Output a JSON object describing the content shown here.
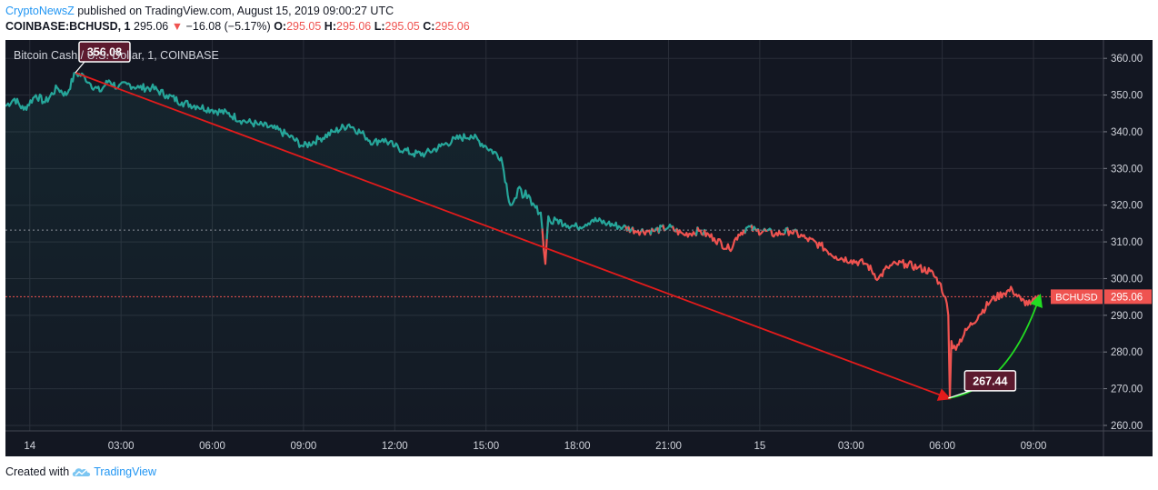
{
  "header": {
    "author": "CryptoNewsZ",
    "published": "published on TradingView.com, August 15, 2019 09:00:27 UTC",
    "symbol": "COINBASE:BCHUSD, 1",
    "last": "295.06",
    "down_arrow": "▼",
    "change": "−16.08 (−5.17%)",
    "o_label": "O:",
    "o_val": "295.05",
    "h_label": "H:",
    "h_val": "295.06",
    "l_label": "L:",
    "l_val": "295.05",
    "c_label": "C:",
    "c_val": "295.06"
  },
  "footer": {
    "created": "Created with",
    "brand": "TradingView",
    "logo_icon": "tradingview-cloud-icon"
  },
  "colors": {
    "background": "#131722",
    "grid": "#2a2e39",
    "up": "#26a69a",
    "down": "#ef5350",
    "trend_down": "#e31b1b",
    "trend_up": "#22dd22",
    "label_box": "#5c1a2e"
  },
  "chart_data": {
    "type": "line",
    "title": "Bitcoin Cash / U.S. Dollar, 1, COINBASE",
    "xlabel": "",
    "ylabel": "",
    "x_ticks": [
      "14",
      "03:00",
      "06:00",
      "09:00",
      "12:00",
      "15:00",
      "18:00",
      "21:00",
      "15",
      "03:00",
      "06:00",
      "09:00"
    ],
    "x_tick_hours": [
      0,
      3,
      6,
      9,
      12,
      15,
      18,
      21,
      24,
      27,
      30,
      33
    ],
    "x_range_hours": [
      -0.8,
      35.3
    ],
    "y_ticks": [
      260,
      270,
      280,
      290,
      300,
      310,
      320,
      330,
      340,
      350,
      360
    ],
    "ylim": [
      258.5,
      365
    ],
    "grid": true,
    "series": [
      {
        "name": "BCHUSD",
        "x_hours": [
          -0.8,
          -0.5,
          -0.2,
          0.2,
          0.5,
          0.9,
          1.2,
          1.5,
          1.8,
          2.0,
          2.3,
          2.6,
          2.9,
          3.2,
          3.6,
          4.0,
          4.5,
          5.0,
          5.5,
          6.0,
          6.5,
          7.0,
          7.5,
          8.0,
          8.5,
          9.0,
          9.5,
          10.0,
          10.5,
          11.0,
          11.3,
          11.6,
          12.0,
          12.3,
          12.6,
          13.0,
          13.5,
          14.0,
          14.5,
          15.0,
          15.5,
          15.8,
          16.0,
          16.1,
          16.2,
          16.3,
          16.5,
          16.8,
          16.95,
          17.05,
          17.15,
          17.3,
          17.6,
          18.0,
          18.5,
          19.0,
          19.5,
          20.0,
          20.5,
          21.0,
          21.5,
          22.0,
          22.5,
          23.0,
          23.3,
          23.6,
          23.9,
          24.2,
          24.5,
          25.0,
          25.5,
          26.0,
          26.5,
          27.0,
          27.5,
          27.9,
          28.2,
          28.5,
          28.8,
          29.2,
          29.6,
          29.9,
          30.1,
          30.2,
          30.25,
          30.3,
          30.35,
          30.5,
          30.8,
          31.2,
          31.6,
          32.0,
          32.3,
          32.6,
          32.9,
          33.2
        ],
        "values": [
          347,
          349,
          346,
          350,
          348,
          352,
          350,
          356,
          355,
          353,
          351,
          354,
          352,
          353,
          352,
          352,
          350,
          348,
          347,
          346,
          345,
          343,
          342,
          341,
          339,
          336,
          338,
          340,
          342,
          339,
          337,
          338,
          336,
          335,
          334,
          334,
          336,
          338,
          339,
          336,
          333,
          320,
          322,
          325,
          322,
          324,
          320,
          318,
          304,
          317,
          315,
          316,
          315,
          314,
          316,
          315,
          314,
          313,
          313,
          314,
          312,
          313,
          311,
          308,
          312,
          314,
          313,
          313,
          312,
          313,
          311,
          309,
          306,
          305,
          304,
          300,
          303,
          304,
          304,
          303,
          302,
          299,
          295,
          290,
          267.4,
          283,
          281,
          282,
          286,
          290,
          294,
          296,
          297,
          294,
          293,
          295.06
        ]
      }
    ],
    "reference_level": 313.2,
    "current_price": {
      "label": "BCHUSD",
      "value": "295.06",
      "num": 295.06
    },
    "annotations": [
      {
        "text": "356.08",
        "x_hours": 1.5,
        "value": 356.08
      },
      {
        "text": "267.44",
        "x_hours": 30.2,
        "value": 267.44
      }
    ],
    "trend_lines": [
      {
        "name": "down-trend",
        "from": [
          1.5,
          356.08
        ],
        "to": [
          30.2,
          267.44
        ]
      },
      {
        "name": "up-trend",
        "from": [
          30.2,
          267.44
        ],
        "to": [
          33.2,
          295.06
        ]
      }
    ]
  }
}
